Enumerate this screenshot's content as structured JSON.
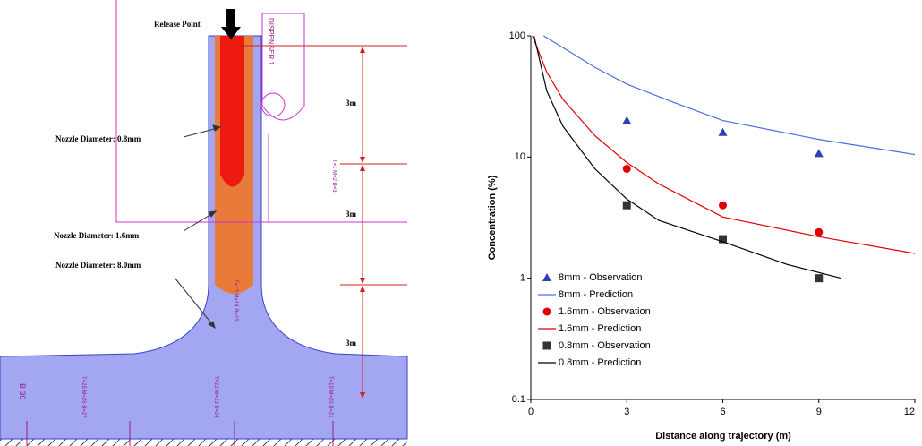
{
  "diagram": {
    "release": "Release Point",
    "dispenser": "DISPENSER 1",
    "spacings": [
      "3m",
      "3m",
      "3m"
    ],
    "nozzles": [
      "Nozzle Diameter: 0.8mm",
      "Nozzle Diameter: 1.6mm",
      "Nozzle Diameter: 8.0mm"
    ],
    "sensors": [
      "T=1 M=2 B=3",
      "T=13 M=14 B=15",
      "T=25 M=26 B=27",
      "T=22 M=23 B=24",
      "T=19 M=20 B=21",
      "B 30"
    ]
  },
  "chart_data": {
    "type": "line",
    "y_label": "Concentration (%)",
    "x_label": "Distance along trajectory (m)",
    "xlim": [
      0,
      12
    ],
    "xticks": [
      0,
      3,
      6,
      9,
      12
    ],
    "ylim": [
      0.1,
      100
    ],
    "yticks": [
      0.1,
      1,
      10,
      100
    ],
    "log_y": true,
    "legend": "lower-left",
    "series": [
      {
        "name": "8mm - Observation",
        "color": "#2e3fb8",
        "style": "marker",
        "marker": "triangle",
        "x": [
          3,
          6,
          9
        ],
        "values": [
          20,
          16,
          10.7
        ]
      },
      {
        "name": "8mm - Prediction",
        "color": "#4a6fe0",
        "style": "line",
        "x": [
          0.4,
          1,
          2,
          3,
          4.5,
          6,
          9,
          12
        ],
        "values": [
          100,
          80,
          55,
          40,
          28,
          20,
          14,
          10.5
        ]
      },
      {
        "name": "1.6mm - Observation",
        "color": "#e00000",
        "style": "marker",
        "marker": "circle",
        "x": [
          3,
          6,
          9
        ],
        "values": [
          8,
          4,
          2.4
        ]
      },
      {
        "name": "1.6mm - Prediction",
        "color": "#e00000",
        "style": "line",
        "x": [
          0.05,
          0.5,
          1,
          2,
          3,
          4,
          6,
          9,
          12
        ],
        "values": [
          100,
          50,
          30,
          15,
          9,
          6,
          3.2,
          2.2,
          1.6
        ]
      },
      {
        "name": "0.8mm - Observation",
        "color": "#333333",
        "style": "marker",
        "marker": "square",
        "x": [
          3,
          6,
          9
        ],
        "values": [
          4,
          2.1,
          1.0
        ]
      },
      {
        "name": "0.8mm - Prediction",
        "color": "#000000",
        "style": "line",
        "x": [
          0.1,
          0.5,
          1,
          2,
          3,
          4,
          6,
          8,
          9.7
        ],
        "values": [
          100,
          35,
          18,
          8,
          4.5,
          3,
          2,
          1.3,
          1.0
        ]
      }
    ]
  }
}
